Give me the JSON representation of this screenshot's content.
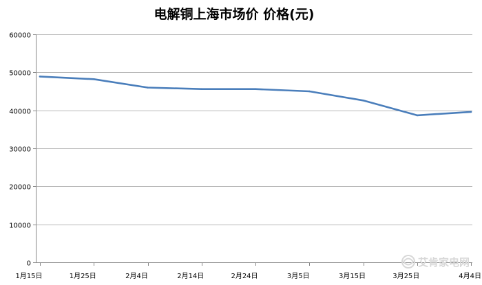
{
  "chart_data": {
    "type": "line",
    "title": "电解铜上海市场价 价格(元)",
    "xlabel": "",
    "ylabel": "",
    "categories": [
      "1月15日",
      "1月25日",
      "2月4日",
      "2月14日",
      "2月24日",
      "3月5日",
      "3月15日",
      "3月25日",
      "4月4日"
    ],
    "series": [
      {
        "values": [
          48900,
          48200,
          46000,
          45600,
          45600,
          45000,
          42600,
          38700,
          39600
        ],
        "color": "#4a7ebb"
      }
    ],
    "ylim": [
      0,
      60000
    ],
    "yticks": [
      0,
      10000,
      20000,
      30000,
      40000,
      50000,
      60000
    ],
    "grid": true,
    "legend": "none"
  },
  "watermark": {
    "text": "艾肯家电网",
    "icon": "swirl-logo-icon"
  }
}
